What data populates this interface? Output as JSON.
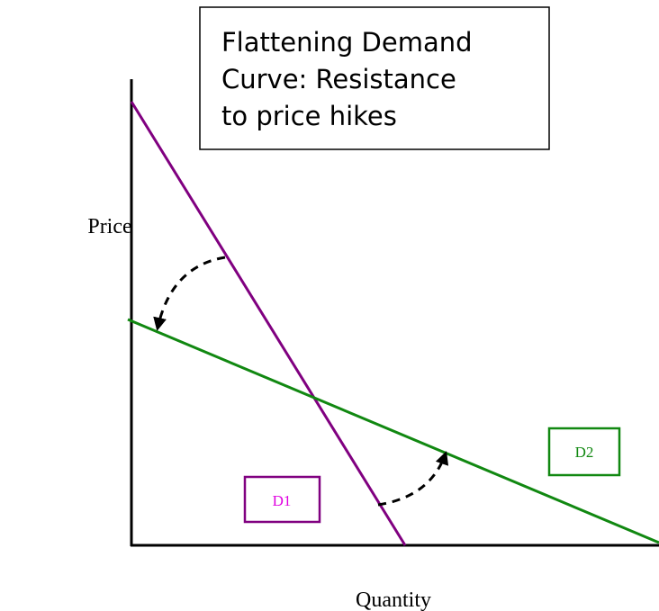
{
  "title": {
    "lines": [
      "Flattening Demand",
      "Curve: Resistance",
      "to price hikes"
    ]
  },
  "axes": {
    "y_label": "Price",
    "x_label": "Quantity"
  },
  "curves": [
    {
      "label": "D1"
    },
    {
      "label": "D2"
    }
  ]
}
